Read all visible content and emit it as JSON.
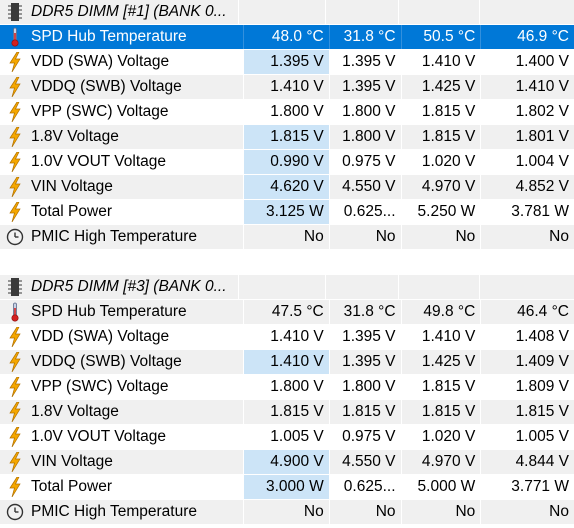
{
  "groups": [
    {
      "title": "DDR5 DIMM [#1] (BANK 0...",
      "rows": [
        {
          "icon": "thermometer-icon",
          "label": "SPD Hub Temperature",
          "values": [
            "48.0 °C",
            "31.8 °C",
            "50.5 °C",
            "46.9 °C"
          ],
          "selected": true
        },
        {
          "icon": "voltage-bolt-icon",
          "label": "VDD (SWA) Voltage",
          "values": [
            "1.395 V",
            "1.395 V",
            "1.410 V",
            "1.400 V"
          ],
          "hl": true
        },
        {
          "icon": "voltage-bolt-icon",
          "label": "VDDQ (SWB) Voltage",
          "values": [
            "1.410 V",
            "1.395 V",
            "1.425 V",
            "1.410 V"
          ]
        },
        {
          "icon": "voltage-bolt-icon",
          "label": "VPP (SWC) Voltage",
          "values": [
            "1.800 V",
            "1.800 V",
            "1.815 V",
            "1.802 V"
          ]
        },
        {
          "icon": "voltage-bolt-icon",
          "label": "1.8V Voltage",
          "values": [
            "1.815 V",
            "1.800 V",
            "1.815 V",
            "1.801 V"
          ],
          "hl": true
        },
        {
          "icon": "voltage-bolt-icon",
          "label": "1.0V VOUT Voltage",
          "values": [
            "0.990 V",
            "0.975 V",
            "1.020 V",
            "1.004 V"
          ],
          "hl": true
        },
        {
          "icon": "voltage-bolt-icon",
          "label": "VIN Voltage",
          "values": [
            "4.620 V",
            "4.550 V",
            "4.970 V",
            "4.852 V"
          ],
          "hl": true
        },
        {
          "icon": "voltage-bolt-icon",
          "label": "Total Power",
          "values": [
            "3.125 W",
            "0.625...",
            "5.250 W",
            "3.781 W"
          ],
          "hl": true
        },
        {
          "icon": "clock-icon",
          "label": "PMIC High Temperature",
          "values": [
            "No",
            "No",
            "No",
            "No"
          ]
        }
      ]
    },
    {
      "title": "DDR5 DIMM [#3] (BANK 0...",
      "rows": [
        {
          "icon": "thermometer-icon",
          "label": "SPD Hub Temperature",
          "values": [
            "47.5 °C",
            "31.8 °C",
            "49.8 °C",
            "46.4 °C"
          ]
        },
        {
          "icon": "voltage-bolt-icon",
          "label": "VDD (SWA) Voltage",
          "values": [
            "1.410 V",
            "1.395 V",
            "1.410 V",
            "1.408 V"
          ]
        },
        {
          "icon": "voltage-bolt-icon",
          "label": "VDDQ (SWB) Voltage",
          "values": [
            "1.410 V",
            "1.395 V",
            "1.425 V",
            "1.409 V"
          ],
          "hl": true
        },
        {
          "icon": "voltage-bolt-icon",
          "label": "VPP (SWC) Voltage",
          "values": [
            "1.800 V",
            "1.800 V",
            "1.815 V",
            "1.809 V"
          ]
        },
        {
          "icon": "voltage-bolt-icon",
          "label": "1.8V Voltage",
          "values": [
            "1.815 V",
            "1.815 V",
            "1.815 V",
            "1.815 V"
          ]
        },
        {
          "icon": "voltage-bolt-icon",
          "label": "1.0V VOUT Voltage",
          "values": [
            "1.005 V",
            "0.975 V",
            "1.020 V",
            "1.005 V"
          ]
        },
        {
          "icon": "voltage-bolt-icon",
          "label": "VIN Voltage",
          "values": [
            "4.900 V",
            "4.550 V",
            "4.970 V",
            "4.844 V"
          ],
          "hl": true
        },
        {
          "icon": "voltage-bolt-icon",
          "label": "Total Power",
          "values": [
            "3.000 W",
            "0.625...",
            "5.000 W",
            "3.771 W"
          ],
          "hl": true
        },
        {
          "icon": "clock-icon",
          "label": "PMIC High Temperature",
          "values": [
            "No",
            "No",
            "No",
            "No"
          ]
        }
      ]
    }
  ],
  "colors": {
    "selected": "#0078d7",
    "highlight": "#cce4f7",
    "stripe": "#f0f0f0"
  }
}
